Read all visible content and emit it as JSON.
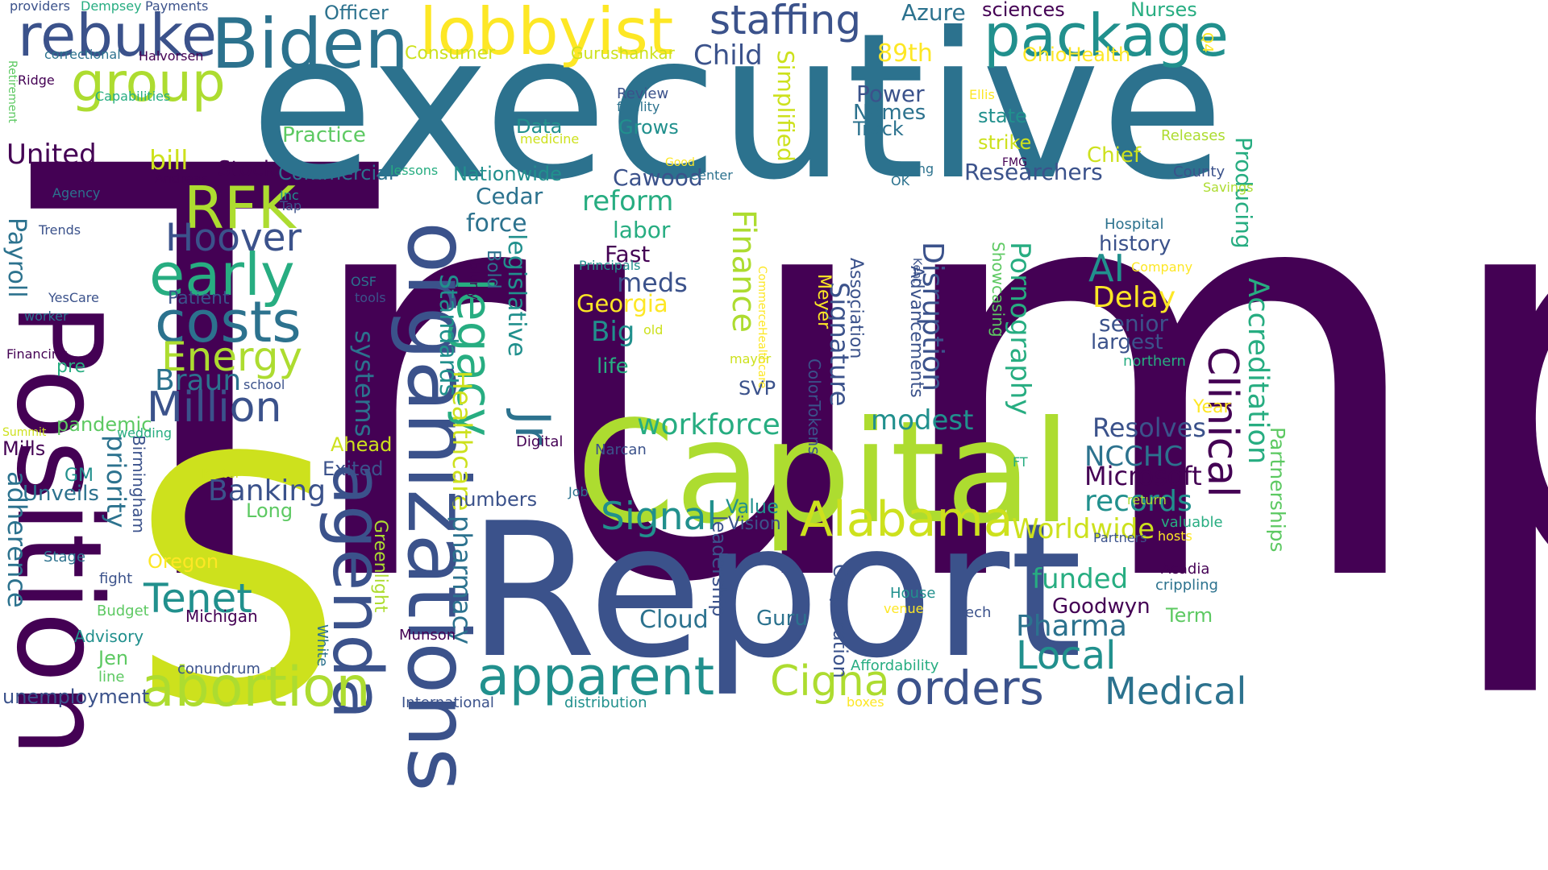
{
  "palette": {
    "c1": "#440154",
    "c2": "#3b528b",
    "c3": "#2c728e",
    "c4": "#21908d",
    "c5": "#27ad81",
    "c6": "#5dc962",
    "c7": "#addc30",
    "c8": "#cde11d",
    "c9": "#fde725"
  },
  "words": [
    {
      "text": "Trump",
      "color": "c1"
    },
    {
      "text": "executive",
      "color": "c3"
    },
    {
      "text": "S",
      "color": "c8"
    },
    {
      "text": "Report",
      "color": "c2"
    },
    {
      "text": "Position",
      "color": "c1"
    },
    {
      "text": "Capital",
      "color": "c7"
    },
    {
      "text": "organizations",
      "color": "c2"
    },
    {
      "text": "agenda",
      "color": "c2"
    },
    {
      "text": "Biden",
      "color": "c3"
    },
    {
      "text": "lobbyist",
      "color": "c9"
    },
    {
      "text": "package",
      "color": "c4"
    },
    {
      "text": "rebuke",
      "color": "c2"
    },
    {
      "text": "staffing",
      "color": "c2"
    },
    {
      "text": "group",
      "color": "c7"
    },
    {
      "text": "costs",
      "color": "c3"
    },
    {
      "text": "early",
      "color": "c5"
    },
    {
      "text": "RFK",
      "color": "c7"
    },
    {
      "text": "Hoover",
      "color": "c2"
    },
    {
      "text": "Energy",
      "color": "c7"
    },
    {
      "text": "Million",
      "color": "c2"
    },
    {
      "text": "abortion",
      "color": "c7"
    },
    {
      "text": "apparent",
      "color": "c4"
    },
    {
      "text": "orders",
      "color": "c2"
    },
    {
      "text": "Medical",
      "color": "c3"
    },
    {
      "text": "Alabama",
      "color": "c8"
    },
    {
      "text": "Clinical",
      "color": "c1"
    },
    {
      "text": "Accreditation",
      "color": "c5"
    },
    {
      "text": "legacy",
      "color": "c5"
    },
    {
      "text": "Jr",
      "color": "c3"
    },
    {
      "text": "Cigna",
      "color": "c7"
    },
    {
      "text": "Signal",
      "color": "c4"
    },
    {
      "text": "workforce",
      "color": "c5"
    },
    {
      "text": "Tenet",
      "color": "c4"
    },
    {
      "text": "Local",
      "color": "c4"
    },
    {
      "text": "Pharma",
      "color": "c3"
    },
    {
      "text": "Finance",
      "color": "c7"
    },
    {
      "text": "Disruption",
      "color": "c2"
    },
    {
      "text": "Pornography",
      "color": "c5"
    },
    {
      "text": "Producing",
      "color": "c5"
    },
    {
      "text": "United",
      "color": "c1"
    },
    {
      "text": "Payroll",
      "color": "c3"
    },
    {
      "text": "adherence",
      "color": "c3"
    },
    {
      "text": "Banking",
      "color": "c2"
    },
    {
      "text": "Healthcare",
      "color": "c8"
    },
    {
      "text": "Standards",
      "color": "c4"
    },
    {
      "text": "legislative",
      "color": "c4"
    },
    {
      "text": "systems",
      "color": "c3"
    },
    {
      "text": "priority",
      "color": "c3"
    },
    {
      "text": "pharmacy",
      "color": "c3"
    },
    {
      "text": "Signature",
      "color": "c2"
    },
    {
      "text": "Simplified",
      "color": "c8"
    },
    {
      "text": "AI",
      "color": "c4"
    },
    {
      "text": "Delay",
      "color": "c9"
    },
    {
      "text": "modest",
      "color": "c4"
    },
    {
      "text": "Resolves",
      "color": "c2"
    },
    {
      "text": "NCCHC",
      "color": "c3"
    },
    {
      "text": "Microsoft",
      "color": "c1"
    },
    {
      "text": "records",
      "color": "c4"
    },
    {
      "text": "Worldwide",
      "color": "c8"
    },
    {
      "text": "funded",
      "color": "c5"
    },
    {
      "text": "Goodwyn",
      "color": "c1"
    },
    {
      "text": "Partnerships",
      "color": "c6"
    },
    {
      "text": "reform",
      "color": "c5"
    },
    {
      "text": "89th",
      "color": "c9"
    },
    {
      "text": "Child",
      "color": "c2"
    },
    {
      "text": "Power",
      "color": "c2"
    },
    {
      "text": "Names",
      "color": "c3"
    },
    {
      "text": "Track",
      "color": "c3"
    },
    {
      "text": "Researchers",
      "color": "c2"
    },
    {
      "text": "Braun",
      "color": "c3"
    },
    {
      "text": "bill",
      "color": "c8"
    },
    {
      "text": "Georgia",
      "color": "c9"
    },
    {
      "text": "meds",
      "color": "c2"
    },
    {
      "text": "Big",
      "color": "c4"
    },
    {
      "text": "labor",
      "color": "c5"
    },
    {
      "text": "Fast",
      "color": "c1"
    },
    {
      "text": "force",
      "color": "c3"
    },
    {
      "text": "Cedar",
      "color": "c3"
    },
    {
      "text": "Cawood",
      "color": "c2"
    },
    {
      "text": "Azure",
      "color": "c3"
    },
    {
      "text": "sciences",
      "color": "c1"
    },
    {
      "text": "Nurses",
      "color": "c5"
    },
    {
      "text": "Officer",
      "color": "c3"
    },
    {
      "text": "Consumer",
      "color": "c8"
    },
    {
      "text": "Gurushankar",
      "color": "c8"
    },
    {
      "text": "OhioHealth",
      "color": "c9"
    },
    {
      "text": "Q4",
      "color": "c9"
    },
    {
      "text": "state",
      "color": "c4"
    },
    {
      "text": "strike",
      "color": "c8"
    },
    {
      "text": "Chief",
      "color": "c8"
    },
    {
      "text": "Stock",
      "color": "c1"
    },
    {
      "text": "Commercial",
      "color": "c3"
    },
    {
      "text": "Nationwide",
      "color": "c4"
    },
    {
      "text": "Practice",
      "color": "c6"
    },
    {
      "text": "Data",
      "color": "c4"
    },
    {
      "text": "Grows",
      "color": "c4"
    },
    {
      "text": "Unveils",
      "color": "c3"
    },
    {
      "text": "Long",
      "color": "c6"
    },
    {
      "text": "Exited",
      "color": "c2"
    },
    {
      "text": "Ahead",
      "color": "c8"
    },
    {
      "text": "numbers",
      "color": "c2"
    },
    {
      "text": "Value",
      "color": "c4"
    },
    {
      "text": "Vision",
      "color": "c2"
    },
    {
      "text": "Cloud",
      "color": "c3"
    },
    {
      "text": "Guru",
      "color": "c3"
    },
    {
      "text": "senior",
      "color": "c2"
    },
    {
      "text": "largest",
      "color": "c2"
    },
    {
      "text": "history",
      "color": "c2"
    },
    {
      "text": "Showcasing",
      "color": "c6"
    },
    {
      "text": "Term",
      "color": "c6"
    },
    {
      "text": "Oregon",
      "color": "c9"
    },
    {
      "text": "Mills",
      "color": "c1"
    },
    {
      "text": "pandemic",
      "color": "c6"
    },
    {
      "text": "Patient",
      "color": "c2"
    },
    {
      "text": "unemployment",
      "color": "c2"
    },
    {
      "text": "Jen",
      "color": "c6"
    },
    {
      "text": "leadership",
      "color": "c2"
    },
    {
      "text": "Corporation",
      "color": "c2"
    },
    {
      "text": "Meyer",
      "color": "c9"
    },
    {
      "text": "Association",
      "color": "c2"
    },
    {
      "text": "Advancements",
      "color": "c2"
    },
    {
      "text": "ColorTokens",
      "color": "c2"
    },
    {
      "text": "Greenlight",
      "color": "c7"
    },
    {
      "text": "Birmingham",
      "color": "c2"
    },
    {
      "text": "Bold",
      "color": "c3"
    },
    {
      "text": "life",
      "color": "c5"
    },
    {
      "text": "SVP",
      "color": "c2"
    },
    {
      "text": "Year",
      "color": "c9"
    },
    {
      "text": "GM",
      "color": "c4"
    },
    {
      "text": "pre",
      "color": "c5"
    },
    {
      "text": "Michigan",
      "color": "c1"
    },
    {
      "text": "Munson",
      "color": "c1"
    },
    {
      "text": "Advisory",
      "color": "c4"
    },
    {
      "text": "Budget",
      "color": "c6"
    },
    {
      "text": "fight",
      "color": "c2"
    },
    {
      "text": "Stage",
      "color": "c3"
    },
    {
      "text": "line",
      "color": "c6"
    },
    {
      "text": "conundrum",
      "color": "c2"
    },
    {
      "text": "International",
      "color": "c2"
    },
    {
      "text": "distribution",
      "color": "c4"
    },
    {
      "text": "boxes",
      "color": "c9"
    },
    {
      "text": "Affordability",
      "color": "c5"
    },
    {
      "text": "House",
      "color": "c4"
    },
    {
      "text": "venue",
      "color": "c9"
    },
    {
      "text": "tech",
      "color": "c2"
    },
    {
      "text": "White",
      "color": "c3"
    },
    {
      "text": "Digital",
      "color": "c1"
    },
    {
      "text": "Narcan",
      "color": "c2"
    },
    {
      "text": "Job",
      "color": "c3"
    },
    {
      "text": "FT",
      "color": "c5"
    },
    {
      "text": "return",
      "color": "c7"
    },
    {
      "text": "valuable",
      "color": "c5"
    },
    {
      "text": "hosts",
      "color": "c9"
    },
    {
      "text": "Partners",
      "color": "c2"
    },
    {
      "text": "Acadia",
      "color": "c1"
    },
    {
      "text": "crippling",
      "color": "c3"
    },
    {
      "text": "Hospital",
      "color": "c3"
    },
    {
      "text": "Company",
      "color": "c9"
    },
    {
      "text": "northern",
      "color": "c5"
    },
    {
      "text": "County",
      "color": "c2"
    },
    {
      "text": "Savings",
      "color": "c7"
    },
    {
      "text": "Releases",
      "color": "c7"
    },
    {
      "text": "Ellis",
      "color": "c9"
    },
    {
      "text": "FMG",
      "color": "c1"
    },
    {
      "text": "Leading",
      "color": "c3"
    },
    {
      "text": "OK",
      "color": "c3"
    },
    {
      "text": "Good",
      "color": "c9"
    },
    {
      "text": "Center",
      "color": "c3"
    },
    {
      "text": "Review",
      "color": "c2"
    },
    {
      "text": "facility",
      "color": "c3"
    },
    {
      "text": "medicine",
      "color": "c8"
    },
    {
      "text": "Principals",
      "color": "c4"
    },
    {
      "text": "old",
      "color": "c8"
    },
    {
      "text": "mayor",
      "color": "c8"
    },
    {
      "text": "CommerceHealthcare",
      "color": "c9"
    },
    {
      "text": "Kent",
      "color": "c2"
    },
    {
      "text": "blurry",
      "color": "c1"
    },
    {
      "text": "OSF",
      "color": "c3"
    },
    {
      "text": "tools",
      "color": "c2"
    },
    {
      "text": "Inc",
      "color": "c4"
    },
    {
      "text": "Tap",
      "color": "c2"
    },
    {
      "text": "lessons",
      "color": "c5"
    },
    {
      "text": "Andreas",
      "color": "c1"
    },
    {
      "text": "Agency",
      "color": "c3"
    },
    {
      "text": "Trends",
      "color": "c2"
    },
    {
      "text": "YesCare",
      "color": "c2"
    },
    {
      "text": "worker",
      "color": "c3"
    },
    {
      "text": "Financing",
      "color": "c1"
    },
    {
      "text": "school",
      "color": "c2"
    },
    {
      "text": "Summit",
      "color": "c8"
    },
    {
      "text": "wedding",
      "color": "c5"
    },
    {
      "text": "Porter",
      "color": "c8"
    },
    {
      "text": "providers",
      "color": "c2"
    },
    {
      "text": "Dempsey",
      "color": "c5"
    },
    {
      "text": "Payments",
      "color": "c2"
    },
    {
      "text": "correctional",
      "color": "c3"
    },
    {
      "text": "Halvorsen",
      "color": "c1"
    },
    {
      "text": "Ridge",
      "color": "c1"
    },
    {
      "text": "Capabilities",
      "color": "c5"
    },
    {
      "text": "Retirement",
      "color": "c6"
    }
  ]
}
